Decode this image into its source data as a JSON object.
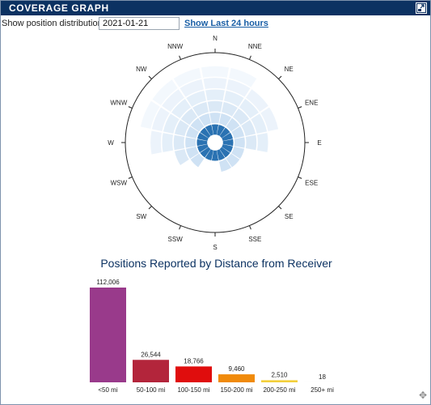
{
  "header": {
    "title": "COVERAGE GRAPH"
  },
  "controls": {
    "label": "Show position distribution for:",
    "date_value": "2021-01-21",
    "link_label": "Show Last 24 hours"
  },
  "compass": {
    "directions": [
      "N",
      "NNE",
      "NE",
      "ENE",
      "E",
      "ESE",
      "SE",
      "SSE",
      "S",
      "SSW",
      "SW",
      "WSW",
      "W",
      "WNW",
      "NW",
      "NNW"
    ],
    "ring_count": 6,
    "sector_reach_rings": [
      6,
      6,
      5,
      5,
      4,
      2,
      2,
      2,
      1,
      1,
      2,
      3,
      5,
      6,
      6,
      6
    ],
    "ring_colors": [
      "#2a72b2",
      "#cfe2f4",
      "#dbe9f6",
      "#e4eff9",
      "#ecf3fb",
      "#f3f8fd"
    ]
  },
  "chart_data": {
    "type": "bar",
    "title": "Positions Reported by Distance from Receiver",
    "categories": [
      "<50 mi",
      "50-100 mi",
      "100-150 mi",
      "150-200 mi",
      "200-250 mi",
      "250+ mi"
    ],
    "values": [
      112006,
      26544,
      18766,
      9460,
      2510,
      18
    ],
    "value_labels": [
      "112,006",
      "26,544",
      "18,766",
      "9,460",
      "2,510",
      "18"
    ],
    "colors": [
      "#993a8b",
      "#b3253b",
      "#e00d0d",
      "#f08a0b",
      "#f3cf3b",
      "#cccccc"
    ]
  }
}
